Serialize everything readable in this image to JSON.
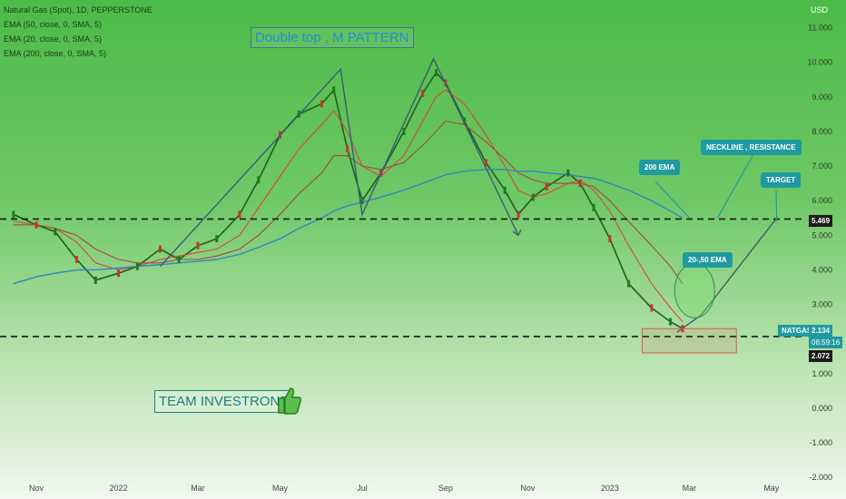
{
  "chart_data": {
    "type": "line",
    "title": "Natural Gas (Spot), 1D, PEPPERSTONE",
    "indicators": [
      "EMA (50, close, 0, SMA, 5)",
      "EMA (20, close, 0, SMA, 5)",
      "EMA (200, close, 0, SMA, 5)"
    ],
    "currency": "USD",
    "yticks": [
      "11.000",
      "10.000",
      "9.000",
      "8.000",
      "7.000",
      "6.000",
      "5.000",
      "4.000",
      "3.000",
      "1.000",
      "0.000",
      "-1.000",
      "-2.000"
    ],
    "xticks": [
      "Nov",
      "2022",
      "Mar",
      "May",
      "Jul",
      "Sep",
      "Nov",
      "2023",
      "Mar",
      "May"
    ],
    "ylim": [
      -2.1,
      11.8
    ],
    "x": [
      "2021-10-15",
      "2021-11-01",
      "2021-11-15",
      "2021-12-01",
      "2021-12-15",
      "2022-01-01",
      "2022-01-15",
      "2022-02-01",
      "2022-02-15",
      "2022-03-01",
      "2022-03-15",
      "2022-04-01",
      "2022-04-15",
      "2022-05-01",
      "2022-05-15",
      "2022-06-01",
      "2022-06-10",
      "2022-06-20",
      "2022-07-01",
      "2022-07-15",
      "2022-08-01",
      "2022-08-15",
      "2022-08-25",
      "2022-09-01",
      "2022-09-15",
      "2022-10-01",
      "2022-10-15",
      "2022-10-25",
      "2022-11-05",
      "2022-11-15",
      "2022-12-01",
      "2022-12-10",
      "2022-12-20",
      "2023-01-01",
      "2023-01-15",
      "2023-02-01",
      "2023-02-15",
      "2023-02-24"
    ],
    "series": [
      {
        "name": "",
        "values": [
          5.6,
          5.3,
          5.1,
          4.3,
          3.7,
          3.9,
          4.1,
          4.6,
          4.3,
          4.7,
          4.9,
          5.6,
          6.6,
          7.9,
          8.5,
          8.8,
          9.2,
          7.5,
          6.0,
          6.8,
          8.0,
          9.1,
          9.7,
          9.4,
          8.3,
          7.1,
          6.3,
          5.6,
          6.1,
          6.4,
          6.8,
          6.5,
          5.8,
          4.9,
          3.6,
          2.9,
          2.5,
          2.3
        ]
      },
      {
        "name": "",
        "values": [
          5.4,
          5.3,
          5.2,
          4.8,
          4.2,
          4.0,
          4.1,
          4.3,
          4.4,
          4.5,
          4.6,
          5.0,
          5.8,
          6.7,
          7.5,
          8.2,
          8.6,
          8.0,
          7.0,
          6.7,
          7.3,
          8.3,
          9.0,
          9.2,
          8.8,
          7.9,
          7.0,
          6.3,
          6.1,
          6.2,
          6.5,
          6.6,
          6.3,
          5.7,
          4.7,
          3.6,
          2.9,
          2.5
        ]
      },
      {
        "name": "",
        "values": [
          5.3,
          5.3,
          5.2,
          5.0,
          4.6,
          4.3,
          4.2,
          4.2,
          4.3,
          4.3,
          4.4,
          4.6,
          5.0,
          5.6,
          6.2,
          6.8,
          7.3,
          7.3,
          7.0,
          6.9,
          7.1,
          7.6,
          8.0,
          8.3,
          8.2,
          7.7,
          7.2,
          6.8,
          6.6,
          6.5,
          6.5,
          6.5,
          6.4,
          6.0,
          5.4,
          4.7,
          4.1,
          3.6
        ]
      },
      {
        "name": "",
        "values": [
          3.6,
          3.8,
          3.9,
          4.0,
          4.0,
          4.05,
          4.1,
          4.15,
          4.2,
          4.25,
          4.3,
          4.45,
          4.65,
          4.9,
          5.2,
          5.5,
          5.7,
          5.85,
          5.95,
          6.1,
          6.3,
          6.5,
          6.65,
          6.75,
          6.85,
          6.9,
          6.9,
          6.85,
          6.85,
          6.8,
          6.75,
          6.7,
          6.65,
          6.5,
          6.3,
          6.0,
          5.7,
          5.5
        ]
      }
    ],
    "levels": {
      "neckline": 5.469,
      "support": 2.072,
      "last": 2.134
    },
    "labels": {
      "pattern": "Double top , M PATTERN",
      "team": "TEAM INVESTRONE",
      "ema200": "200 EMA",
      "neckline": "NECKLINE , RESISTANCE",
      "target": "TARGET",
      "ema2050": "20-,50 EMA",
      "symbol": "NATGAS",
      "price": "2.134",
      "countdown": "08:59:16",
      "neckline_price": "5.469",
      "support_price": "2.072"
    },
    "grid": false
  },
  "colors": {
    "price": "#1f5f1c",
    "ema20": "#d9473c",
    "ema50": "#a34a43",
    "ema200": "#2f86c4",
    "drawing": "#3d5a7a",
    "callout": "#1f9aa0",
    "support_box": "#e0584a"
  }
}
